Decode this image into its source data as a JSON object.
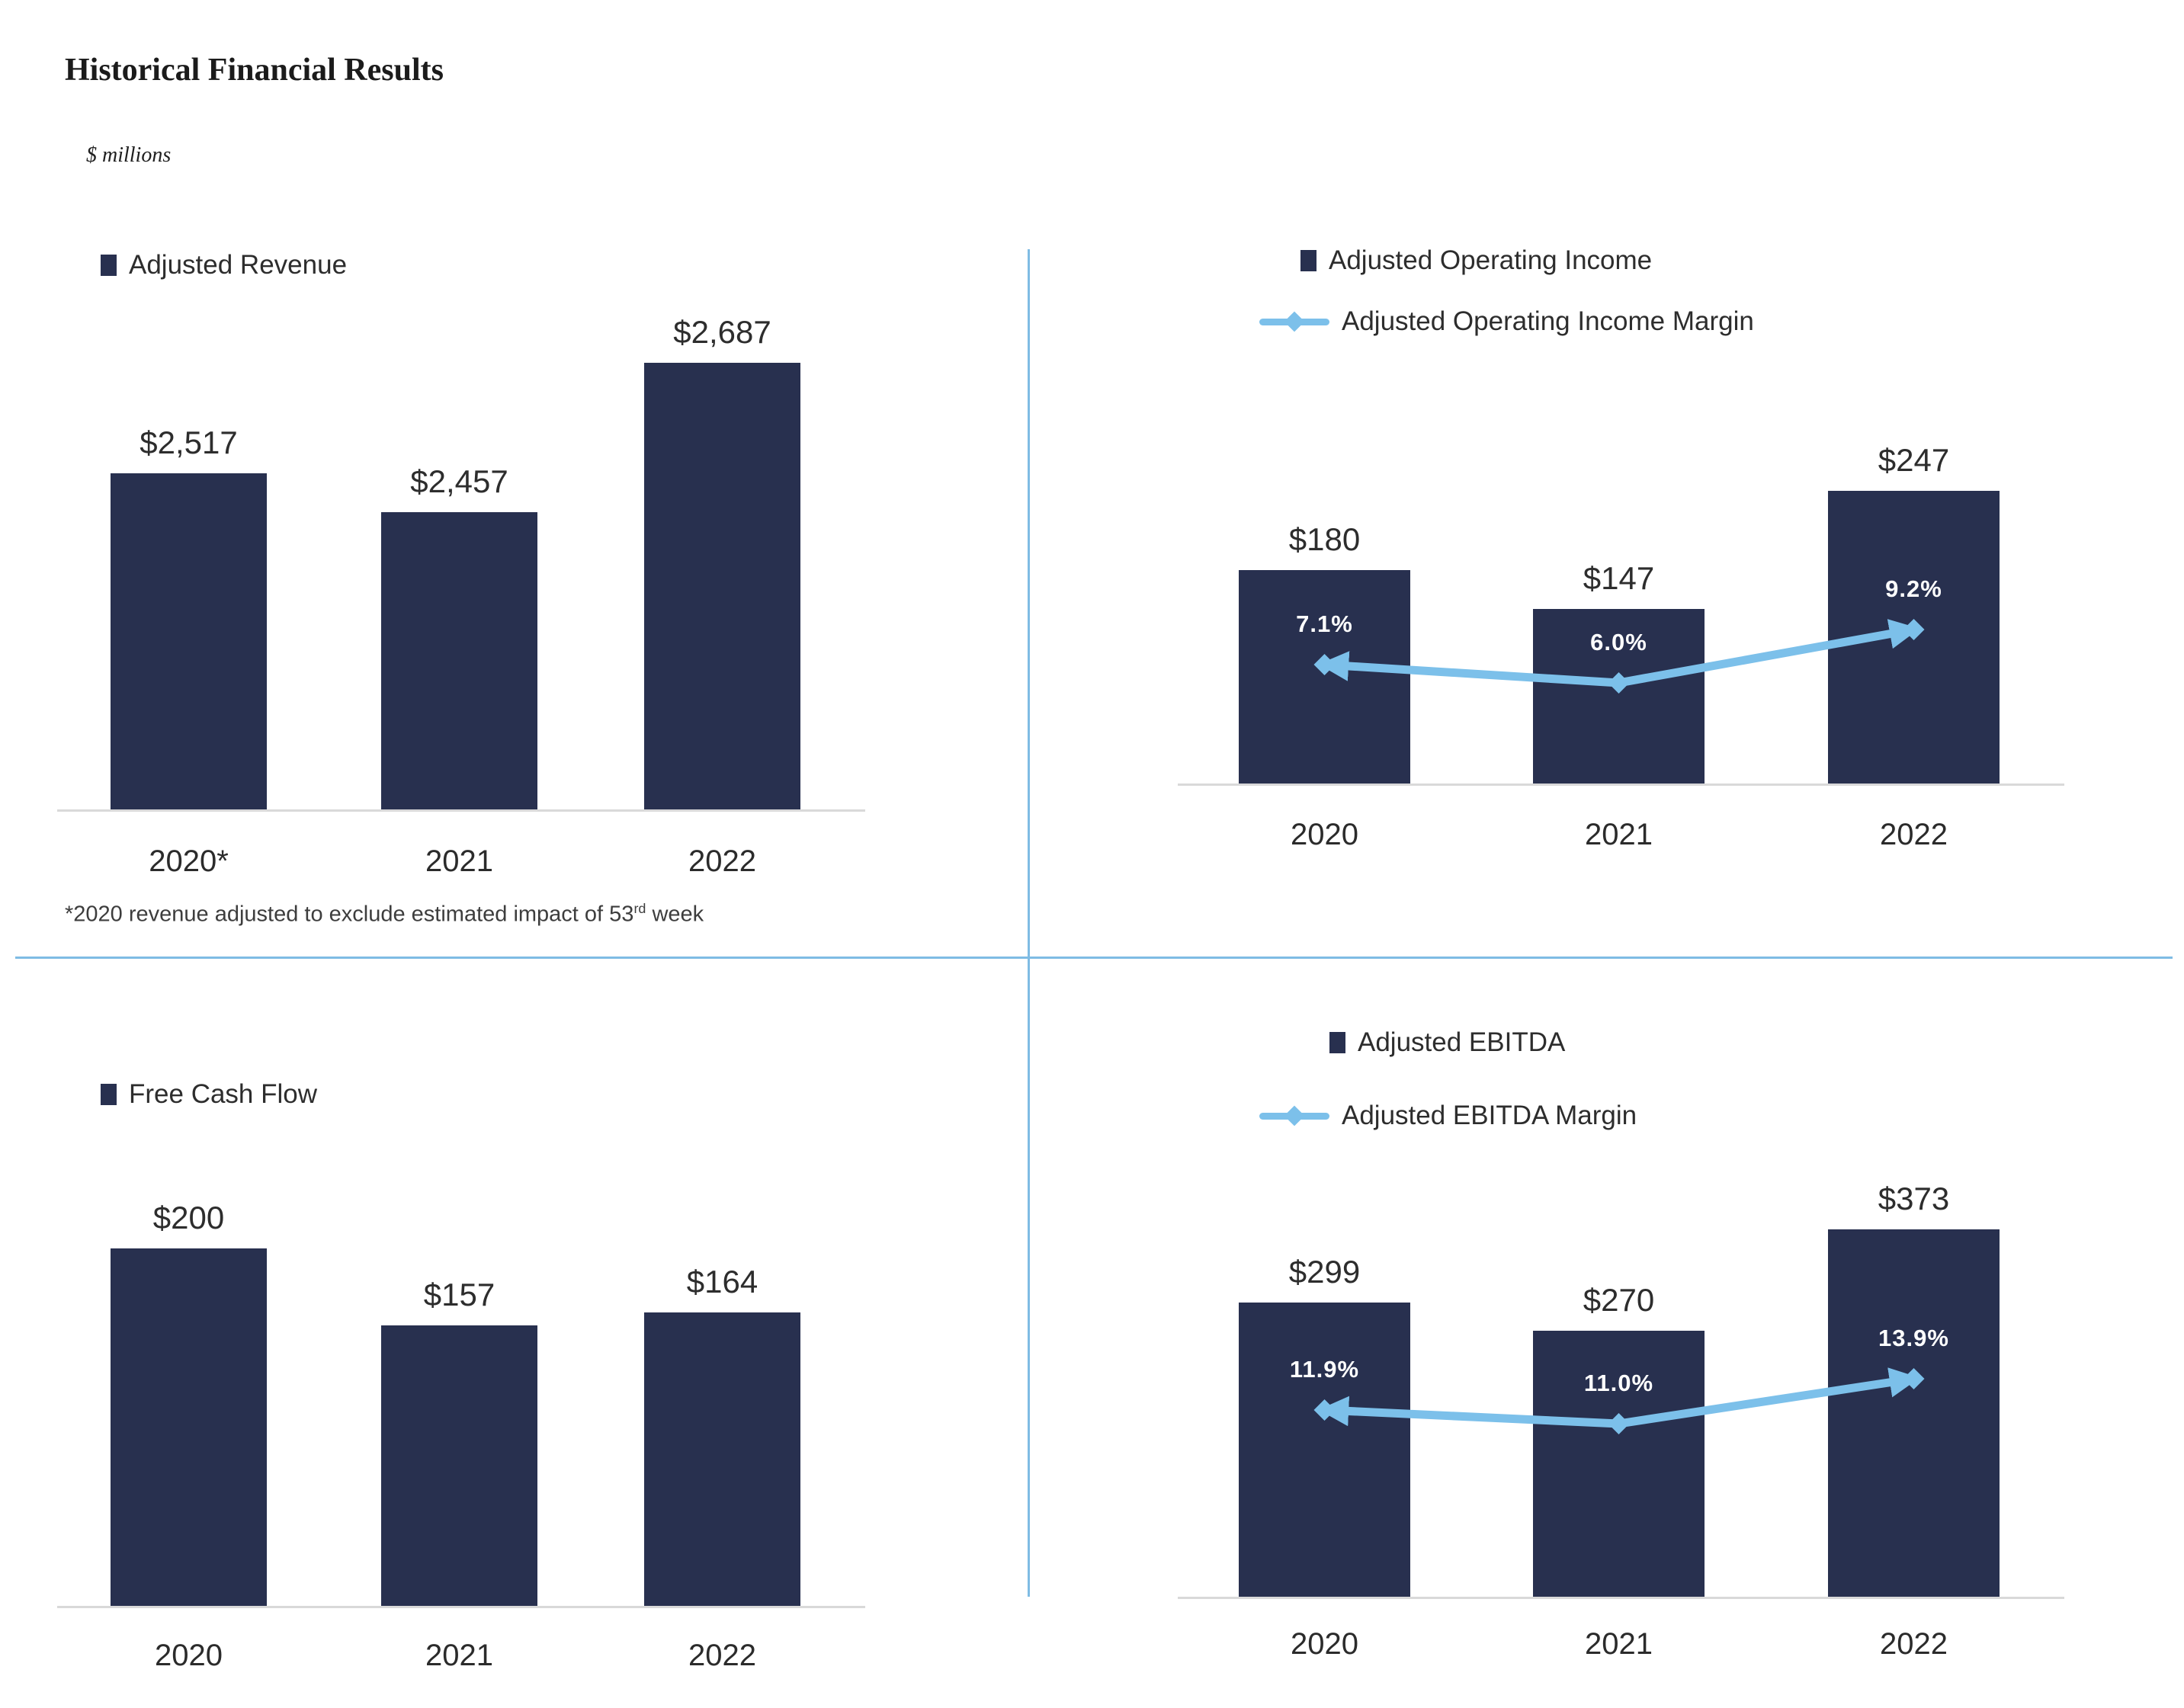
{
  "page": {
    "title": "Historical Financial Results",
    "units_note": "$ millions"
  },
  "colors": {
    "bar_navy": "#28304F",
    "line_blue": "#7CC0EA",
    "divider_blue": "#7FBCE4",
    "axis_gray": "#D9D9D9"
  },
  "footnote": {
    "prefix": "*2020 revenue adjusted to exclude estimated impact of 53",
    "superscript": "rd",
    "suffix": " week"
  },
  "chart_data": [
    {
      "id": "adjusted-revenue",
      "type": "bar",
      "position": "top-left",
      "legend": [
        {
          "series": "Adjusted Revenue",
          "marker": "square"
        }
      ],
      "categories": [
        "2020*",
        "2021",
        "2022"
      ],
      "series": [
        {
          "name": "Adjusted Revenue",
          "type": "bar",
          "values": [
            2517,
            2457,
            2687
          ],
          "labels": [
            "$2,517",
            "$2,457",
            "$2,687"
          ]
        }
      ],
      "ylim": [
        2000,
        2800
      ],
      "grid": false,
      "legend_position": "top-left"
    },
    {
      "id": "adjusted-operating-income",
      "type": "bar+line",
      "position": "top-right",
      "legend": [
        {
          "series": "Adjusted Operating Income",
          "marker": "square"
        },
        {
          "series": "Adjusted Operating Income Margin",
          "marker": "line-diamond"
        }
      ],
      "categories": [
        "2020",
        "2021",
        "2022"
      ],
      "series": [
        {
          "name": "Adjusted Operating Income",
          "type": "bar",
          "values": [
            180,
            147,
            247
          ],
          "labels": [
            "$180",
            "$147",
            "$247"
          ]
        },
        {
          "name": "Adjusted Operating Income Margin",
          "type": "line",
          "values": [
            7.1,
            6.0,
            9.2
          ],
          "labels": [
            "7.1%",
            "6.0%",
            "9.2%"
          ]
        }
      ],
      "ylim": [
        0,
        260
      ],
      "grid": false,
      "legend_position": "top-center"
    },
    {
      "id": "free-cash-flow",
      "type": "bar",
      "position": "bottom-left",
      "legend": [
        {
          "series": "Free Cash Flow",
          "marker": "square"
        }
      ],
      "categories": [
        "2020",
        "2021",
        "2022"
      ],
      "series": [
        {
          "name": "Free Cash Flow",
          "type": "bar",
          "values": [
            200,
            157,
            164
          ],
          "labels": [
            "$200",
            "$157",
            "$164"
          ]
        }
      ],
      "ylim": [
        0,
        210
      ],
      "grid": false,
      "legend_position": "top-left"
    },
    {
      "id": "adjusted-ebitda",
      "type": "bar+line",
      "position": "bottom-right",
      "legend": [
        {
          "series": "Adjusted EBITDA",
          "marker": "square"
        },
        {
          "series": "Adjusted EBITDA Margin",
          "marker": "line-diamond"
        }
      ],
      "categories": [
        "2020",
        "2021",
        "2022"
      ],
      "series": [
        {
          "name": "Adjusted EBITDA",
          "type": "bar",
          "values": [
            299,
            270,
            373
          ],
          "labels": [
            "$299",
            "$270",
            "$373"
          ]
        },
        {
          "name": "Adjusted EBITDA Margin",
          "type": "line",
          "values": [
            11.9,
            11.0,
            13.9
          ],
          "labels": [
            "11.9%",
            "11.0%",
            "13.9%"
          ]
        }
      ],
      "ylim": [
        0,
        390
      ],
      "grid": false,
      "legend_position": "top-center"
    }
  ]
}
